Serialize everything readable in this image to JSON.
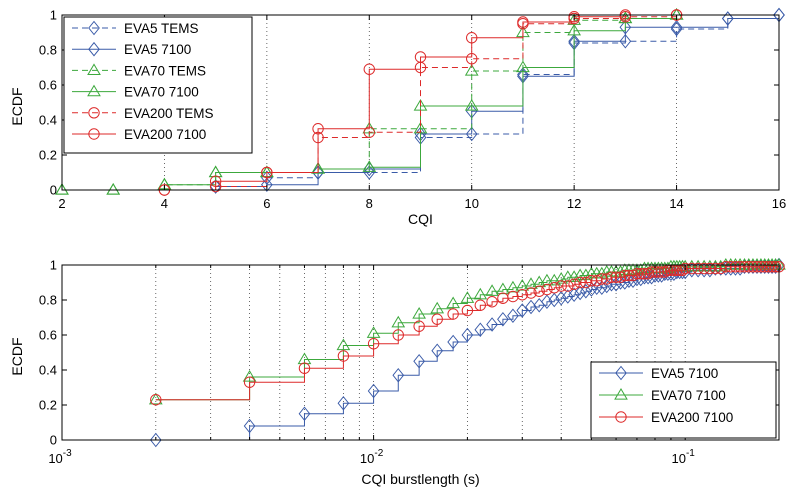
{
  "chart_data": [
    {
      "type": "line",
      "step": true,
      "xlabel": "CQI",
      "ylabel": "ECDF",
      "xlim": [
        2,
        16
      ],
      "ylim": [
        0,
        1
      ],
      "xscale": "linear",
      "xticks": [
        2,
        4,
        6,
        8,
        10,
        12,
        14,
        16
      ],
      "xtick_labels": [
        "2",
        "4",
        "6",
        "8",
        "10",
        "12",
        "14",
        "16"
      ],
      "yticks": [
        0,
        0.2,
        0.4,
        0.6,
        0.8,
        1
      ],
      "ytick_labels": [
        "0",
        "0.2",
        "0.4",
        "0.6",
        "0.8",
        "1"
      ],
      "grid": "x-dotted",
      "legend_position": "top-left",
      "series": [
        {
          "name": "EVA5 TEMS",
          "color": "#3a5ba8",
          "dash": "dashed",
          "marker": "diamond",
          "x": [
            5,
            6,
            7,
            8,
            9,
            10,
            11,
            12,
            13,
            14,
            15,
            16
          ],
          "y": [
            0.02,
            0.07,
            0.1,
            0.1,
            0.3,
            0.32,
            0.66,
            0.84,
            0.85,
            0.92,
            0.98,
            1.0
          ]
        },
        {
          "name": "EVA5 7100",
          "color": "#3a5ba8",
          "dash": "solid",
          "marker": "diamond",
          "x": [
            5,
            6,
            7,
            8,
            9,
            10,
            11,
            12,
            13,
            14,
            15,
            16
          ],
          "y": [
            0.02,
            0.03,
            0.1,
            0.12,
            0.32,
            0.45,
            0.65,
            0.85,
            0.93,
            0.93,
            0.98,
            1.0
          ]
        },
        {
          "name": "EVA70 TEMS",
          "color": "#3ca83c",
          "dash": "dashed",
          "marker": "triangle",
          "x": [
            2,
            3,
            4,
            5,
            6,
            7,
            8,
            9,
            10,
            11,
            12,
            13,
            14
          ],
          "y": [
            0.0,
            0.0,
            0.03,
            0.1,
            0.1,
            0.12,
            0.35,
            0.35,
            0.68,
            0.9,
            0.97,
            0.98,
            1.0
          ]
        },
        {
          "name": "EVA70 7100",
          "color": "#3ca83c",
          "dash": "solid",
          "marker": "triangle",
          "x": [
            2,
            3,
            4,
            5,
            6,
            7,
            8,
            9,
            10,
            11,
            12,
            13,
            14
          ],
          "y": [
            0.0,
            0.0,
            0.03,
            0.1,
            0.1,
            0.12,
            0.13,
            0.48,
            0.48,
            0.7,
            0.91,
            0.98,
            1.0
          ]
        },
        {
          "name": "EVA200 TEMS",
          "color": "#dd2a2a",
          "dash": "dashed",
          "marker": "circle",
          "x": [
            4,
            5,
            6,
            7,
            8,
            9,
            10,
            11,
            12,
            13,
            14
          ],
          "y": [
            0.0,
            0.02,
            0.1,
            0.3,
            0.33,
            0.7,
            0.75,
            0.95,
            0.98,
            0.99,
            1.0
          ]
        },
        {
          "name": "EVA200 7100",
          "color": "#dd2a2a",
          "dash": "solid",
          "marker": "circle",
          "x": [
            4,
            5,
            6,
            7,
            8,
            9,
            10,
            11,
            12,
            13,
            14
          ],
          "y": [
            0.0,
            0.05,
            0.1,
            0.35,
            0.69,
            0.76,
            0.87,
            0.96,
            0.99,
            1.0,
            1.0
          ]
        }
      ]
    },
    {
      "type": "line",
      "step": true,
      "xlabel": "CQI burstlength (s)",
      "ylabel": "ECDF",
      "xlim": [
        0.001,
        0.2
      ],
      "ylim": [
        0,
        1
      ],
      "xscale": "log",
      "xticks": [
        0.001,
        0.01,
        0.1
      ],
      "xtick_labels": [
        [
          "10",
          "-3"
        ],
        [
          "10",
          "-2"
        ],
        [
          "10",
          "-1"
        ]
      ],
      "yticks": [
        0,
        0.2,
        0.4,
        0.6,
        0.8,
        1
      ],
      "ytick_labels": [
        "0",
        "0.2",
        "0.4",
        "0.6",
        "0.8",
        "1"
      ],
      "grid": "x-dotted",
      "legend_position": "bottom-right",
      "series": [
        {
          "name": "EVA5 7100",
          "color": "#3a5ba8",
          "dash": "solid",
          "marker": "diamond",
          "x": [
            0.002,
            0.004,
            0.006,
            0.008,
            0.01,
            0.012,
            0.014,
            0.016,
            0.018,
            0.02,
            0.022,
            0.024,
            0.026,
            0.028,
            0.03,
            0.032,
            0.034,
            0.036,
            0.038,
            0.04,
            0.042,
            0.044,
            0.046,
            0.048,
            0.05,
            0.052,
            0.054,
            0.056,
            0.058,
            0.06,
            0.062,
            0.064,
            0.066,
            0.068,
            0.07,
            0.072,
            0.074,
            0.076,
            0.078,
            0.08,
            0.082,
            0.084,
            0.086,
            0.088,
            0.09,
            0.092,
            0.094,
            0.096,
            0.098,
            0.1,
            0.105,
            0.11,
            0.115,
            0.12,
            0.125,
            0.13,
            0.135,
            0.14,
            0.145,
            0.15,
            0.155,
            0.16,
            0.165,
            0.17,
            0.175,
            0.18,
            0.185,
            0.19,
            0.195,
            0.2
          ],
          "y": [
            0.0,
            0.08,
            0.15,
            0.21,
            0.28,
            0.37,
            0.45,
            0.51,
            0.56,
            0.6,
            0.63,
            0.66,
            0.69,
            0.71,
            0.74,
            0.76,
            0.77,
            0.79,
            0.8,
            0.81,
            0.82,
            0.83,
            0.84,
            0.85,
            0.86,
            0.87,
            0.87,
            0.88,
            0.89,
            0.89,
            0.9,
            0.9,
            0.91,
            0.91,
            0.92,
            0.92,
            0.93,
            0.93,
            0.93,
            0.94,
            0.94,
            0.94,
            0.95,
            0.95,
            0.95,
            0.95,
            0.96,
            0.96,
            0.96,
            0.96,
            0.97,
            0.97,
            0.97,
            0.97,
            0.98,
            0.98,
            0.98,
            0.98,
            0.98,
            0.98,
            0.99,
            0.99,
            0.99,
            0.99,
            0.99,
            0.99,
            0.99,
            0.99,
            0.99,
            1.0
          ]
        },
        {
          "name": "EVA70 7100",
          "color": "#3ca83c",
          "dash": "solid",
          "marker": "triangle",
          "x": [
            0.002,
            0.004,
            0.006,
            0.008,
            0.01,
            0.012,
            0.014,
            0.016,
            0.018,
            0.02,
            0.022,
            0.024,
            0.026,
            0.028,
            0.03,
            0.032,
            0.034,
            0.036,
            0.038,
            0.04,
            0.042,
            0.044,
            0.046,
            0.048,
            0.05,
            0.052,
            0.054,
            0.056,
            0.058,
            0.06,
            0.062,
            0.064,
            0.066,
            0.068,
            0.07,
            0.072,
            0.074,
            0.076,
            0.078,
            0.08,
            0.082,
            0.084,
            0.086,
            0.088,
            0.09,
            0.092,
            0.094,
            0.096,
            0.098,
            0.1,
            0.105,
            0.11,
            0.115,
            0.12,
            0.125,
            0.13,
            0.135,
            0.14,
            0.145,
            0.15,
            0.155,
            0.16,
            0.165,
            0.17,
            0.175,
            0.18,
            0.185,
            0.19,
            0.195,
            0.2
          ],
          "y": [
            0.23,
            0.36,
            0.46,
            0.54,
            0.61,
            0.67,
            0.72,
            0.75,
            0.78,
            0.81,
            0.83,
            0.85,
            0.86,
            0.87,
            0.88,
            0.89,
            0.9,
            0.91,
            0.91,
            0.92,
            0.93,
            0.93,
            0.94,
            0.94,
            0.95,
            0.95,
            0.95,
            0.96,
            0.96,
            0.96,
            0.96,
            0.97,
            0.97,
            0.97,
            0.97,
            0.97,
            0.98,
            0.98,
            0.98,
            0.98,
            0.98,
            0.98,
            0.98,
            0.98,
            0.99,
            0.99,
            0.99,
            0.99,
            0.99,
            0.99,
            0.99,
            0.99,
            0.99,
            0.99,
            0.99,
            0.99,
            1.0,
            1.0,
            1.0,
            1.0,
            1.0,
            1.0,
            1.0,
            1.0,
            1.0,
            1.0,
            1.0,
            1.0,
            1.0,
            1.0
          ]
        },
        {
          "name": "EVA200 7100",
          "color": "#dd2a2a",
          "dash": "solid",
          "marker": "circle",
          "x": [
            0.002,
            0.004,
            0.006,
            0.008,
            0.01,
            0.012,
            0.014,
            0.016,
            0.018,
            0.02,
            0.022,
            0.024,
            0.026,
            0.028,
            0.03,
            0.032,
            0.034,
            0.036,
            0.038,
            0.04,
            0.042,
            0.044,
            0.046,
            0.048,
            0.05,
            0.052,
            0.054,
            0.056,
            0.058,
            0.06,
            0.062,
            0.064,
            0.066,
            0.068,
            0.07,
            0.072,
            0.074,
            0.076,
            0.078,
            0.08,
            0.082,
            0.084,
            0.086,
            0.088,
            0.09,
            0.092,
            0.094,
            0.096,
            0.098,
            0.1,
            0.105,
            0.11,
            0.115,
            0.12,
            0.125,
            0.13,
            0.135,
            0.14,
            0.145,
            0.15,
            0.155,
            0.16,
            0.165,
            0.17,
            0.175,
            0.18,
            0.185,
            0.19,
            0.195,
            0.2
          ],
          "y": [
            0.23,
            0.33,
            0.41,
            0.48,
            0.55,
            0.6,
            0.65,
            0.69,
            0.72,
            0.74,
            0.77,
            0.79,
            0.81,
            0.82,
            0.83,
            0.84,
            0.85,
            0.86,
            0.87,
            0.88,
            0.88,
            0.89,
            0.9,
            0.9,
            0.91,
            0.91,
            0.92,
            0.92,
            0.93,
            0.93,
            0.93,
            0.94,
            0.94,
            0.94,
            0.95,
            0.95,
            0.95,
            0.95,
            0.96,
            0.96,
            0.96,
            0.96,
            0.96,
            0.97,
            0.97,
            0.97,
            0.97,
            0.97,
            0.97,
            0.98,
            0.98,
            0.98,
            0.98,
            0.98,
            0.98,
            0.98,
            0.99,
            0.99,
            0.99,
            0.99,
            0.99,
            0.99,
            0.99,
            0.99,
            0.99,
            0.99,
            0.99,
            0.99,
            0.99,
            0.99
          ]
        }
      ]
    }
  ]
}
